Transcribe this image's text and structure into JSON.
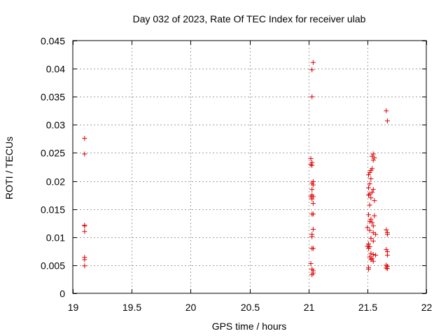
{
  "chart_data": {
    "type": "scatter",
    "title": "Day 032 of 2023, Rate Of TEC Index for receiver ulab",
    "xlabel": "GPS time / hours",
    "ylabel": "ROTI / TECUs",
    "xlim": [
      19,
      22
    ],
    "ylim": [
      0,
      0.045
    ],
    "xticks": [
      19,
      19.5,
      20,
      20.5,
      21,
      21.5,
      22
    ],
    "xtick_labels": [
      "19",
      "19.5",
      "20",
      "20.5",
      "21",
      "21.5",
      "22"
    ],
    "yticks": [
      0,
      0.005,
      0.01,
      0.015,
      0.02,
      0.025,
      0.03,
      0.035,
      0.04,
      0.045
    ],
    "ytick_labels": [
      "0",
      "0.005",
      "0.01",
      "0.015",
      "0.02",
      "0.025",
      "0.03",
      "0.035",
      "0.04",
      "0.045"
    ],
    "grid": true,
    "marker": "plus",
    "color": "#e00000",
    "series": [
      {
        "name": "ulab",
        "points": [
          [
            19.1,
            0.0276
          ],
          [
            19.1,
            0.0248
          ],
          [
            19.1,
            0.0121
          ],
          [
            19.1,
            0.012
          ],
          [
            19.1,
            0.011
          ],
          [
            19.1,
            0.0064
          ],
          [
            19.1,
            0.006
          ],
          [
            19.1,
            0.0049
          ],
          [
            21.04,
            0.0411
          ],
          [
            21.03,
            0.0398
          ],
          [
            21.03,
            0.035
          ],
          [
            21.02,
            0.024
          ],
          [
            21.03,
            0.0233
          ],
          [
            21.02,
            0.0229
          ],
          [
            21.03,
            0.0228
          ],
          [
            21.04,
            0.0199
          ],
          [
            21.03,
            0.0196
          ],
          [
            21.04,
            0.0193
          ],
          [
            21.03,
            0.0185
          ],
          [
            21.03,
            0.0175
          ],
          [
            21.02,
            0.0172
          ],
          [
            21.04,
            0.0172
          ],
          [
            21.03,
            0.0168
          ],
          [
            21.04,
            0.016
          ],
          [
            21.03,
            0.0141
          ],
          [
            21.04,
            0.0141
          ],
          [
            21.04,
            0.0114
          ],
          [
            21.03,
            0.0105
          ],
          [
            21.03,
            0.0101
          ],
          [
            21.03,
            0.008
          ],
          [
            21.04,
            0.008
          ],
          [
            21.02,
            0.0053
          ],
          [
            21.03,
            0.0043
          ],
          [
            21.04,
            0.004
          ],
          [
            21.04,
            0.0036
          ],
          [
            21.03,
            0.0033
          ],
          [
            21.55,
            0.0248
          ],
          [
            21.54,
            0.0244
          ],
          [
            21.56,
            0.0241
          ],
          [
            21.55,
            0.0237
          ],
          [
            21.54,
            0.0222
          ],
          [
            21.53,
            0.0219
          ],
          [
            21.52,
            0.0215
          ],
          [
            21.51,
            0.0211
          ],
          [
            21.53,
            0.0204
          ],
          [
            21.52,
            0.0195
          ],
          [
            21.51,
            0.0188
          ],
          [
            21.55,
            0.0185
          ],
          [
            21.54,
            0.018
          ],
          [
            21.52,
            0.0177
          ],
          [
            21.51,
            0.0175
          ],
          [
            21.53,
            0.017
          ],
          [
            21.56,
            0.0165
          ],
          [
            21.52,
            0.0157
          ],
          [
            21.51,
            0.014
          ],
          [
            21.56,
            0.0138
          ],
          [
            21.53,
            0.0132
          ],
          [
            21.52,
            0.0128
          ],
          [
            21.54,
            0.0126
          ],
          [
            21.55,
            0.012
          ],
          [
            21.5,
            0.0117
          ],
          [
            21.52,
            0.0112
          ],
          [
            21.55,
            0.0108
          ],
          [
            21.57,
            0.0105
          ],
          [
            21.53,
            0.0098
          ],
          [
            21.55,
            0.0093
          ],
          [
            21.51,
            0.0088
          ],
          [
            21.5,
            0.0084
          ],
          [
            21.52,
            0.0083
          ],
          [
            21.51,
            0.008
          ],
          [
            21.53,
            0.0071
          ],
          [
            21.55,
            0.0069
          ],
          [
            21.57,
            0.0068
          ],
          [
            21.52,
            0.0065
          ],
          [
            21.54,
            0.0062
          ],
          [
            21.53,
            0.006
          ],
          [
            21.55,
            0.0057
          ],
          [
            21.51,
            0.0046
          ],
          [
            21.51,
            0.0043
          ],
          [
            21.66,
            0.0325
          ],
          [
            21.67,
            0.0307
          ],
          [
            21.66,
            0.0113
          ],
          [
            21.67,
            0.0108
          ],
          [
            21.67,
            0.0105
          ],
          [
            21.66,
            0.0078
          ],
          [
            21.67,
            0.0074
          ],
          [
            21.67,
            0.0068
          ],
          [
            21.66,
            0.005
          ],
          [
            21.67,
            0.0048
          ],
          [
            21.66,
            0.0045
          ],
          [
            21.67,
            0.0044
          ]
        ]
      }
    ]
  }
}
